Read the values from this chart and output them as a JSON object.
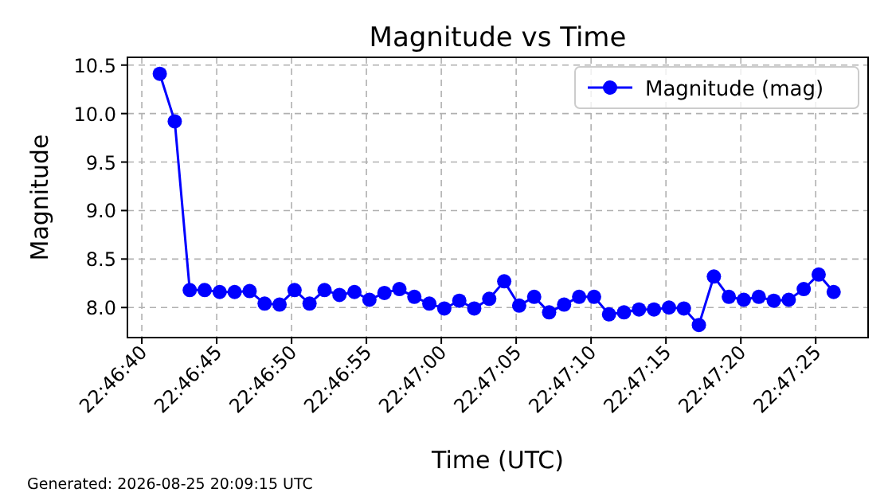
{
  "chart_data": {
    "type": "line",
    "title": "Magnitude vs Time",
    "xlabel": "Time (UTC)",
    "ylabel": "Magnitude",
    "annotations": [
      "Generated: 2026-08-25 20:09:15 UTC"
    ],
    "x": [
      22.778111,
      22.778389,
      22.778667,
      22.778944,
      22.779222,
      22.7795,
      22.779778,
      22.780056,
      22.780333,
      22.780611,
      22.780889,
      22.781167,
      22.781444,
      22.781722,
      22.782,
      22.782278,
      22.782556,
      22.782833,
      22.783111,
      22.783389,
      22.783667,
      22.783944,
      22.784222,
      22.7845,
      22.784778,
      22.785056,
      22.785333,
      22.785611,
      22.785889,
      22.786167,
      22.786444,
      22.786722,
      22.787,
      22.787278,
      22.787556,
      22.787833,
      22.788111,
      22.788389,
      22.788667,
      22.788944,
      22.789222,
      22.7895,
      22.789778,
      22.790056,
      22.790333,
      22.790611
    ],
    "series": [
      {
        "name": "Magnitude (mag)",
        "color": "#0000ff",
        "values": [
          10.41,
          9.92,
          8.18,
          8.18,
          8.16,
          8.16,
          8.17,
          8.04,
          8.03,
          8.18,
          8.04,
          8.18,
          8.13,
          8.16,
          8.08,
          8.15,
          8.19,
          8.11,
          8.04,
          7.99,
          8.07,
          7.99,
          8.09,
          8.27,
          8.02,
          8.11,
          7.95,
          8.03,
          8.11,
          8.11,
          7.93,
          7.95,
          7.98,
          7.98,
          8.0,
          7.99,
          7.82,
          8.32,
          8.11,
          8.08,
          8.11,
          8.07,
          8.08,
          8.19,
          8.34,
          8.16
        ]
      }
    ],
    "xlim": [
      22.777511,
      22.79125
    ],
    "xticks": [
      {
        "value": 22.777778,
        "label": "22:46:40"
      },
      {
        "value": 22.779167,
        "label": "22:46:45"
      },
      {
        "value": 22.780556,
        "label": "22:46:50"
      },
      {
        "value": 22.781944,
        "label": "22:46:55"
      },
      {
        "value": 22.783333,
        "label": "22:47:00"
      },
      {
        "value": 22.784722,
        "label": "22:47:05"
      },
      {
        "value": 22.786111,
        "label": "22:47:10"
      },
      {
        "value": 22.7875,
        "label": "22:47:15"
      },
      {
        "value": 22.788889,
        "label": "22:47:20"
      },
      {
        "value": 22.790278,
        "label": "22:47:25"
      }
    ],
    "ylim": [
      7.69,
      10.58
    ],
    "yticks": [
      {
        "value": 8,
        "label": "8.0"
      },
      {
        "value": 8.5,
        "label": "8.5"
      },
      {
        "value": 9,
        "label": "9.0"
      },
      {
        "value": 9.5,
        "label": "9.5"
      },
      {
        "value": 10,
        "label": "10.0"
      },
      {
        "value": 10.5,
        "label": "10.5"
      }
    ],
    "grid": true,
    "legend": "top right",
    "marker": "circle",
    "line_style": "solid"
  }
}
